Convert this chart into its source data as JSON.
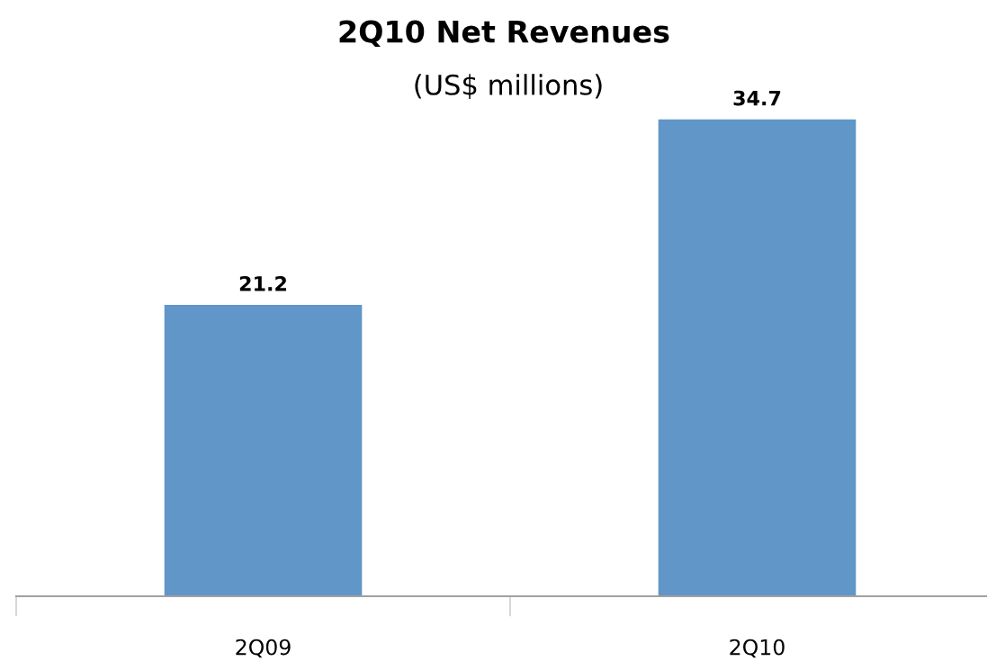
{
  "chart_data": {
    "type": "bar",
    "title": "2Q10 Net Revenues",
    "subtitle": "(US$ millions)",
    "categories": [
      "2Q09",
      "2Q10"
    ],
    "values": [
      21.2,
      34.7
    ],
    "color": "#6096c8",
    "data_labels": true,
    "grid": false,
    "legend": false
  }
}
